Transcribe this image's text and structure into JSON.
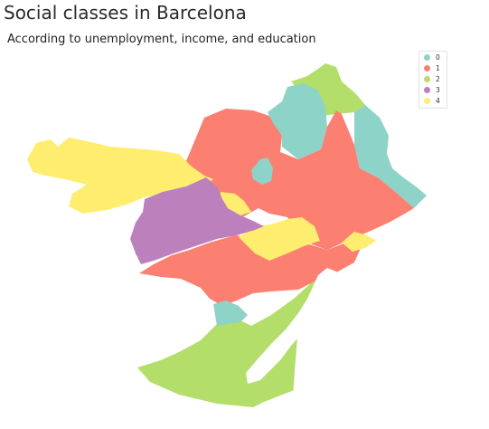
{
  "title": "Social classes in Barcelona",
  "subtitle": "According to unemployment, income, and education",
  "legend": [
    {
      "label": "0",
      "color": "#8dd3c7"
    },
    {
      "label": "1",
      "color": "#fb8072"
    },
    {
      "label": "2",
      "color": "#b3de69"
    },
    {
      "label": "3",
      "color": "#bc80bd"
    },
    {
      "label": "4",
      "color": "#ffed6f"
    }
  ]
}
